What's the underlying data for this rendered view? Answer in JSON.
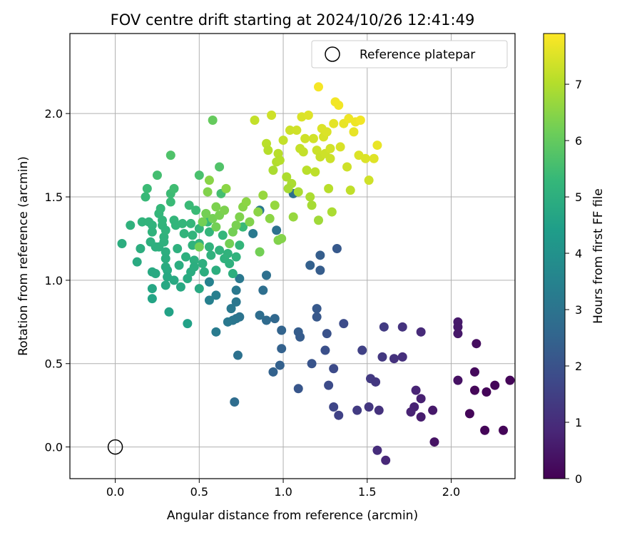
{
  "chart_data": {
    "type": "scatter",
    "title": "FOV centre drift starting at 2024/10/26 12:41:49",
    "xlabel": "Angular distance from reference (arcmin)",
    "ylabel": "Rotation from reference (arcmin)",
    "xlim": [
      -0.27,
      2.38
    ],
    "ylim": [
      -0.19,
      2.48
    ],
    "xticks": [
      "0.0",
      "0.5",
      "1.0",
      "1.5",
      "2.0"
    ],
    "yticks": [
      "0.0",
      "0.5",
      "1.0",
      "1.5",
      "2.0"
    ],
    "grid": true,
    "legend": {
      "position": "top-right",
      "entries": [
        "Reference platepar"
      ]
    },
    "reference_point": {
      "x": 0.0,
      "y": 0.0,
      "label": "Reference platepar",
      "marker": "open-circle"
    },
    "colorbar": {
      "label": "Hours from first FF file",
      "min": 0,
      "max": 7.9,
      "ticks": [
        "0",
        "1",
        "2",
        "3",
        "4",
        "5",
        "6",
        "7"
      ],
      "colormap": [
        "#440154",
        "#482878",
        "#3e4989",
        "#31688e",
        "#26828e",
        "#1f9e89",
        "#35b779",
        "#6ece58",
        "#b5de2b",
        "#fde725"
      ]
    },
    "series": [
      {
        "points": [
          [
            2.04,
            0.75
          ],
          [
            2.04,
            0.72
          ],
          [
            2.04,
            0.68
          ],
          [
            2.15,
            0.62
          ],
          [
            2.04,
            0.4
          ],
          [
            2.14,
            0.45
          ],
          [
            2.14,
            0.34
          ],
          [
            2.21,
            0.33
          ],
          [
            2.26,
            0.37
          ],
          [
            2.35,
            0.4
          ],
          [
            2.11,
            0.2
          ],
          [
            2.2,
            0.1
          ],
          [
            2.31,
            0.1
          ],
          [
            1.9,
            0.03
          ],
          [
            1.61,
            -0.08
          ],
          [
            1.56,
            -0.02
          ],
          [
            1.57,
            0.22
          ],
          [
            1.51,
            0.24
          ],
          [
            1.44,
            0.22
          ],
          [
            1.33,
            0.19
          ],
          [
            1.3,
            0.24
          ],
          [
            1.27,
            0.37
          ],
          [
            1.3,
            0.47
          ],
          [
            1.25,
            0.58
          ],
          [
            1.47,
            0.58
          ],
          [
            1.52,
            0.41
          ],
          [
            1.55,
            0.39
          ],
          [
            1.59,
            0.54
          ],
          [
            1.66,
            0.53
          ],
          [
            1.71,
            0.54
          ],
          [
            1.6,
            0.72
          ],
          [
            1.71,
            0.72
          ],
          [
            1.82,
            0.69
          ],
          [
            1.79,
            0.34
          ],
          [
            1.82,
            0.29
          ],
          [
            1.78,
            0.24
          ],
          [
            1.76,
            0.21
          ],
          [
            1.82,
            0.18
          ],
          [
            1.89,
            0.22
          ],
          [
            1.36,
            0.74
          ],
          [
            1.26,
            0.68
          ],
          [
            1.2,
            0.78
          ],
          [
            1.2,
            0.83
          ],
          [
            1.09,
            0.69
          ],
          [
            1.1,
            0.66
          ],
          [
            0.99,
            0.7
          ],
          [
            0.99,
            0.59
          ],
          [
            0.98,
            0.49
          ],
          [
            0.94,
            0.45
          ],
          [
            1.09,
            0.35
          ],
          [
            1.17,
            0.5
          ],
          [
            0.95,
            0.77
          ],
          [
            0.9,
            0.76
          ],
          [
            0.86,
            0.79
          ],
          [
            0.74,
            0.78
          ],
          [
            0.72,
            0.77
          ],
          [
            0.7,
            0.76
          ],
          [
            0.67,
            0.75
          ],
          [
            0.72,
            0.87
          ],
          [
            0.72,
            0.94
          ],
          [
            0.69,
            0.83
          ],
          [
            0.73,
            0.55
          ],
          [
            0.71,
            0.27
          ],
          [
            0.6,
            0.69
          ],
          [
            0.6,
            0.91
          ],
          [
            0.56,
            0.88
          ],
          [
            0.56,
            0.99
          ],
          [
            0.88,
            0.94
          ],
          [
            0.9,
            1.03
          ],
          [
            0.74,
            1.01
          ],
          [
            1.16,
            1.09
          ],
          [
            1.22,
            1.06
          ],
          [
            1.22,
            1.15
          ],
          [
            1.32,
            1.19
          ],
          [
            0.82,
            1.28
          ],
          [
            0.86,
            1.42
          ],
          [
            0.96,
            1.3
          ],
          [
            1.06,
            1.52
          ]
        ]
      }
    ],
    "green_cluster": [
      [
        0.04,
        1.22
      ],
      [
        0.09,
        1.33
      ],
      [
        0.13,
        1.11
      ],
      [
        0.15,
        1.19
      ],
      [
        0.16,
        1.35
      ],
      [
        0.18,
        1.5
      ],
      [
        0.19,
        1.55
      ],
      [
        0.2,
        1.35
      ],
      [
        0.21,
        1.23
      ],
      [
        0.22,
        1.33
      ],
      [
        0.22,
        1.29
      ],
      [
        0.24,
        1.2
      ],
      [
        0.22,
        0.95
      ],
      [
        0.22,
        0.89
      ],
      [
        0.22,
        1.05
      ],
      [
        0.24,
        1.04
      ],
      [
        0.25,
        1.63
      ],
      [
        0.26,
        1.2
      ],
      [
        0.26,
        1.4
      ],
      [
        0.27,
        1.43
      ],
      [
        0.28,
        1.36
      ],
      [
        0.28,
        1.33
      ],
      [
        0.29,
        1.23
      ],
      [
        0.29,
        1.26
      ],
      [
        0.3,
        1.3
      ],
      [
        0.3,
        1.17
      ],
      [
        0.3,
        1.13
      ],
      [
        0.3,
        1.08
      ],
      [
        0.3,
        0.97
      ],
      [
        0.31,
        1.06
      ],
      [
        0.31,
        1.02
      ],
      [
        0.32,
        0.81
      ],
      [
        0.33,
        1.75
      ],
      [
        0.33,
        1.52
      ],
      [
        0.33,
        1.47
      ],
      [
        0.35,
        1.55
      ],
      [
        0.35,
        1.36
      ],
      [
        0.36,
        1.33
      ],
      [
        0.37,
        1.19
      ],
      [
        0.38,
        1.09
      ],
      [
        0.4,
        1.34
      ],
      [
        0.41,
        1.28
      ],
      [
        0.42,
        1.14
      ],
      [
        0.43,
        1.01
      ],
      [
        0.43,
        0.74
      ],
      [
        0.44,
        1.45
      ],
      [
        0.45,
        1.05
      ],
      [
        0.46,
        1.27
      ],
      [
        0.46,
        1.21
      ],
      [
        0.47,
        1.12
      ],
      [
        0.47,
        1.08
      ],
      [
        0.5,
        1.63
      ],
      [
        0.5,
        1.22
      ],
      [
        0.52,
        1.1
      ],
      [
        0.53,
        1.05
      ],
      [
        0.55,
        1.35
      ],
      [
        0.56,
        1.29
      ],
      [
        0.56,
        1.2
      ],
      [
        0.58,
        1.96
      ],
      [
        0.57,
        1.15
      ],
      [
        0.6,
        1.06
      ],
      [
        0.62,
        1.18
      ],
      [
        0.63,
        1.52
      ],
      [
        0.64,
        1.27
      ],
      [
        0.65,
        1.13
      ],
      [
        0.67,
        1.16
      ],
      [
        0.68,
        1.1
      ],
      [
        0.7,
        1.04
      ],
      [
        0.72,
        1.14
      ],
      [
        0.74,
        1.21
      ],
      [
        0.76,
        1.32
      ],
      [
        0.62,
        1.68
      ],
      [
        0.48,
        1.42
      ],
      [
        0.5,
        1.31
      ],
      [
        0.39,
        0.96
      ],
      [
        0.45,
        1.34
      ],
      [
        0.5,
        0.95
      ],
      [
        0.35,
        1.0
      ]
    ],
    "lime_cluster": [
      [
        0.5,
        1.2
      ],
      [
        0.52,
        1.35
      ],
      [
        0.54,
        1.4
      ],
      [
        0.55,
        1.53
      ],
      [
        0.56,
        1.6
      ],
      [
        0.58,
        1.37
      ],
      [
        0.6,
        1.32
      ],
      [
        0.6,
        1.44
      ],
      [
        0.62,
        1.39
      ],
      [
        0.65,
        1.42
      ],
      [
        0.66,
        1.55
      ],
      [
        0.68,
        1.22
      ],
      [
        0.7,
        1.29
      ],
      [
        0.72,
        1.33
      ],
      [
        0.74,
        1.38
      ],
      [
        0.76,
        1.44
      ],
      [
        0.78,
        1.47
      ],
      [
        0.8,
        1.35
      ],
      [
        0.83,
        1.96
      ],
      [
        0.85,
        1.41
      ],
      [
        0.86,
        1.17
      ],
      [
        0.88,
        1.51
      ],
      [
        0.9,
        1.82
      ],
      [
        0.91,
        1.78
      ],
      [
        0.92,
        1.37
      ],
      [
        0.93,
        1.99
      ],
      [
        0.94,
        1.66
      ],
      [
        0.95,
        1.45
      ],
      [
        0.96,
        1.71
      ],
      [
        0.97,
        1.76
      ],
      [
        0.97,
        1.24
      ],
      [
        0.99,
        1.25
      ],
      [
        1.0,
        1.84
      ],
      [
        1.02,
        1.62
      ],
      [
        1.04,
        1.9
      ],
      [
        1.05,
        1.58
      ],
      [
        1.06,
        1.38
      ],
      [
        1.08,
        1.9
      ],
      [
        1.09,
        1.53
      ],
      [
        1.11,
        1.98
      ],
      [
        1.12,
        1.77
      ],
      [
        1.14,
        1.66
      ],
      [
        1.15,
        1.99
      ],
      [
        1.16,
        1.5
      ],
      [
        1.17,
        1.45
      ],
      [
        1.18,
        1.85
      ],
      [
        1.19,
        1.65
      ],
      [
        1.2,
        1.78
      ],
      [
        1.21,
        1.36
      ],
      [
        1.21,
        2.16
      ],
      [
        1.22,
        1.74
      ],
      [
        1.23,
        1.91
      ],
      [
        1.24,
        1.86
      ],
      [
        1.25,
        1.76
      ],
      [
        1.26,
        1.89
      ],
      [
        1.27,
        1.55
      ],
      [
        1.28,
        1.73
      ],
      [
        1.29,
        1.41
      ],
      [
        1.3,
        1.94
      ],
      [
        1.31,
        2.07
      ],
      [
        1.33,
        2.05
      ],
      [
        1.34,
        1.8
      ],
      [
        1.36,
        1.94
      ],
      [
        1.38,
        1.68
      ],
      [
        1.39,
        1.97
      ],
      [
        1.4,
        1.54
      ],
      [
        1.42,
        1.89
      ],
      [
        1.45,
        1.75
      ],
      [
        1.49,
        1.73
      ],
      [
        1.51,
        1.6
      ],
      [
        1.54,
        1.73
      ],
      [
        1.56,
        1.81
      ],
      [
        1.43,
        1.95
      ],
      [
        1.46,
        1.96
      ],
      [
        1.1,
        1.79
      ],
      [
        1.03,
        1.55
      ],
      [
        0.98,
        1.72
      ],
      [
        1.13,
        1.85
      ],
      [
        1.28,
        1.79
      ]
    ]
  }
}
